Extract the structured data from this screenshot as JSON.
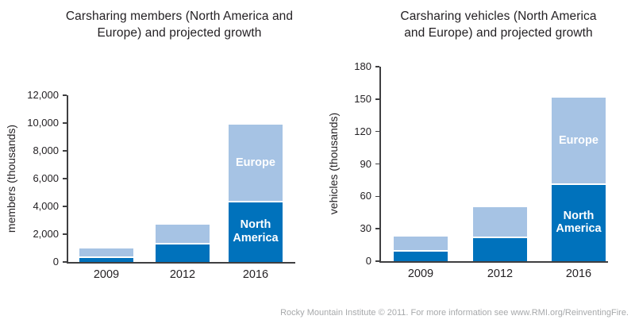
{
  "colors": {
    "north_america": "#0072bc",
    "europe": "#a6c3e4",
    "axis": "#3f3f41",
    "title_text": "#242124",
    "footer_text": "#a7a9ab"
  },
  "footer": {
    "text": "Rocky Mountain Institute © 2011. For more information see www.RMI.org/ReinventingFire."
  },
  "chart_data": [
    {
      "type": "bar",
      "stacked": true,
      "title": "Carsharing members (North America and Europe) and projected growth",
      "title_lines": [
        "Carsharing members (North America and",
        "Europe) and projected growth"
      ],
      "ylabel": "members (thousands)",
      "xlabel": "",
      "categories": [
        "2009",
        "2012",
        "2016"
      ],
      "series": [
        {
          "name": "North America",
          "values": [
            400,
            1400,
            4400
          ]
        },
        {
          "name": "Europe",
          "values": [
            600,
            1300,
            5500
          ]
        }
      ],
      "totals": [
        1000,
        2700,
        9900
      ],
      "ylim": [
        0,
        12000
      ],
      "ytick_step": 2000,
      "ytick_labels": [
        "0",
        "2,000",
        "4,000",
        "6,000",
        "8,000",
        "10,000",
        "12,000"
      ],
      "grid": false,
      "legend_position": "inside-last-bar"
    },
    {
      "type": "bar",
      "stacked": true,
      "title": "Carsharing vehicles (North America and Europe) and projected growth",
      "title_lines": [
        "Carsharing vehicles (North America",
        "and Europe) and projected growth"
      ],
      "ylabel": "vehicles (thousands)",
      "xlabel": "",
      "categories": [
        "2009",
        "2012",
        "2016"
      ],
      "series": [
        {
          "name": "North America",
          "values": [
            10,
            23,
            72
          ]
        },
        {
          "name": "Europe",
          "values": [
            13,
            27,
            79
          ]
        }
      ],
      "totals": [
        23,
        50,
        151
      ],
      "ylim": [
        0,
        180
      ],
      "ytick_step": 30,
      "ytick_labels": [
        "0",
        "30",
        "60",
        "90",
        "120",
        "150",
        "180"
      ],
      "grid": false,
      "legend_position": "inside-last-bar"
    }
  ]
}
